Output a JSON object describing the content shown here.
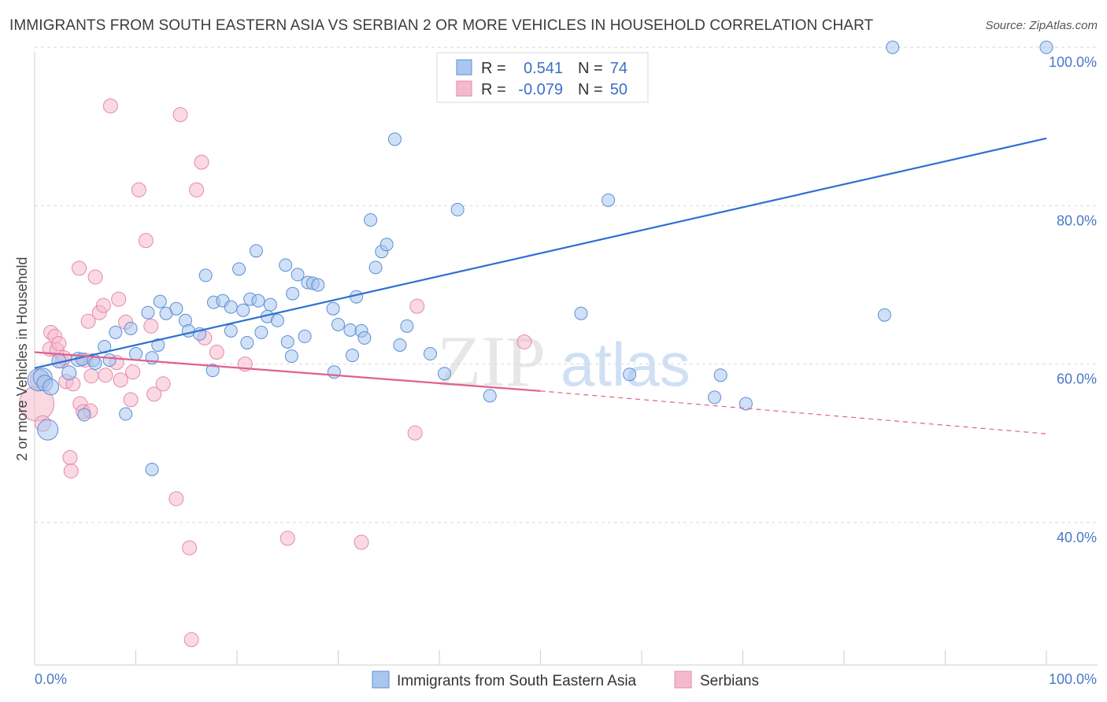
{
  "header": {
    "title": "IMMIGRANTS FROM SOUTH EASTERN ASIA VS SERBIAN 2 OR MORE VEHICLES IN HOUSEHOLD CORRELATION CHART",
    "source": "Source: ZipAtlas.com"
  },
  "watermark": {
    "zip": "ZIP",
    "atlas": "atlas"
  },
  "stats": {
    "r_label": "R =",
    "n_label": "N =",
    "blue_r": "0.541",
    "blue_n": "74",
    "pink_r": "-0.079",
    "pink_n": "50"
  },
  "colors": {
    "blue_fill": "#a9c6ee",
    "blue_stroke": "#5b8fd6",
    "blue_line": "#2f6fd0",
    "pink_fill": "#f5b9cc",
    "pink_stroke": "#e58aa8",
    "pink_line": "#e0608e",
    "grid": "#d9d9d9",
    "tick_text": "#4a78c8"
  },
  "chart_data": {
    "type": "scatter",
    "title": "IMMIGRANTS FROM SOUTH EASTERN ASIA VS SERBIAN 2 OR MORE VEHICLES IN HOUSEHOLD CORRELATION CHART",
    "xlabel": "",
    "ylabel": "2 or more Vehicles in Household",
    "xlim": [
      0,
      100
    ],
    "ylim": [
      22,
      102
    ],
    "x_tick_labels": [
      "0.0%",
      "100.0%"
    ],
    "y_ticks": [
      40,
      60,
      80,
      100
    ],
    "y_tick_labels": [
      "40.0%",
      "60.0%",
      "80.0%",
      "100.0%"
    ],
    "grid": "horizontal dashed",
    "legend_position": "bottom-center",
    "series": [
      {
        "name": "Immigrants from South Eastern Asia",
        "color": "#a9c6ee",
        "r": 0.541,
        "n": 74,
        "trend": {
          "x": [
            0,
            100
          ],
          "y": [
            59.5,
            88.5
          ],
          "style": "solid"
        },
        "points": [
          [
            0.4,
            58.0,
            14
          ],
          [
            0.8,
            58.3,
            12
          ],
          [
            1.0,
            57.6,
            10
          ],
          [
            1.3,
            51.7,
            13
          ],
          [
            1.6,
            57.1,
            10
          ],
          [
            2.4,
            60.4,
            9
          ],
          [
            3.4,
            58.9,
            9
          ],
          [
            4.3,
            60.6,
            9
          ],
          [
            4.7,
            60.6,
            8
          ],
          [
            4.9,
            53.6,
            8
          ],
          [
            5.8,
            60.5,
            8
          ],
          [
            6.0,
            60.1,
            8
          ],
          [
            6.9,
            62.2,
            8
          ],
          [
            7.4,
            60.5,
            8
          ],
          [
            8.0,
            64.0,
            8
          ],
          [
            9.0,
            53.7,
            8
          ],
          [
            9.5,
            64.5,
            8
          ],
          [
            10.0,
            61.3,
            8
          ],
          [
            11.2,
            66.5,
            8
          ],
          [
            11.6,
            60.8,
            8
          ],
          [
            11.6,
            46.7,
            8
          ],
          [
            12.2,
            62.4,
            8
          ],
          [
            12.4,
            67.9,
            8
          ],
          [
            13.0,
            66.4,
            8
          ],
          [
            14.0,
            67.0,
            8
          ],
          [
            14.9,
            65.5,
            8
          ],
          [
            15.2,
            64.2,
            8
          ],
          [
            16.3,
            63.8,
            8
          ],
          [
            16.9,
            71.2,
            8
          ],
          [
            17.6,
            59.2,
            8
          ],
          [
            17.7,
            67.8,
            8
          ],
          [
            18.6,
            68.0,
            8
          ],
          [
            19.4,
            67.2,
            8
          ],
          [
            19.4,
            64.2,
            8
          ],
          [
            20.2,
            72.0,
            8
          ],
          [
            20.6,
            66.8,
            8
          ],
          [
            21.0,
            62.7,
            8
          ],
          [
            21.3,
            68.2,
            8
          ],
          [
            21.9,
            74.3,
            8
          ],
          [
            22.1,
            68.0,
            8
          ],
          [
            22.4,
            64.0,
            8
          ],
          [
            23.0,
            66.0,
            8
          ],
          [
            23.3,
            67.5,
            8
          ],
          [
            24.0,
            65.5,
            8
          ],
          [
            24.8,
            72.5,
            8
          ],
          [
            25.0,
            62.8,
            8
          ],
          [
            25.4,
            61.0,
            8
          ],
          [
            25.5,
            68.9,
            8
          ],
          [
            26.0,
            71.3,
            8
          ],
          [
            26.7,
            63.5,
            8
          ],
          [
            27.0,
            70.3,
            8
          ],
          [
            27.5,
            70.2,
            8
          ],
          [
            28.0,
            70.0,
            8
          ],
          [
            29.5,
            67.0,
            8
          ],
          [
            29.6,
            59.0,
            8
          ],
          [
            30.0,
            65.0,
            8
          ],
          [
            31.2,
            64.3,
            8
          ],
          [
            31.4,
            61.1,
            8
          ],
          [
            31.8,
            68.5,
            8
          ],
          [
            32.3,
            64.2,
            8
          ],
          [
            32.6,
            63.3,
            8
          ],
          [
            33.2,
            78.2,
            8
          ],
          [
            33.7,
            72.2,
            8
          ],
          [
            34.3,
            74.2,
            8
          ],
          [
            34.8,
            75.1,
            8
          ],
          [
            35.6,
            88.4,
            8
          ],
          [
            36.1,
            62.4,
            8
          ],
          [
            36.8,
            64.8,
            8
          ],
          [
            39.1,
            61.3,
            8
          ],
          [
            40.5,
            58.8,
            8
          ],
          [
            41.8,
            79.5,
            8
          ],
          [
            45.0,
            56.0,
            8
          ],
          [
            54.0,
            66.4,
            8
          ],
          [
            56.7,
            80.7,
            8
          ],
          [
            58.8,
            58.7,
            8
          ],
          [
            67.2,
            55.8,
            8
          ],
          [
            67.8,
            58.6,
            8
          ],
          [
            70.3,
            55.0,
            8
          ],
          [
            84.0,
            66.2,
            8
          ],
          [
            84.8,
            100.0,
            8
          ],
          [
            100.0,
            100.0,
            8
          ]
        ]
      },
      {
        "name": "Serbians",
        "color": "#f5b9cc",
        "r": -0.079,
        "n": 50,
        "trend": {
          "x": [
            0,
            50
          ],
          "y": [
            61.5,
            56.6
          ],
          "style": "solid",
          "extension": {
            "x": [
              50,
              100
            ],
            "y": [
              56.6,
              51.2
            ],
            "style": "dashed"
          }
        },
        "points": [
          [
            0.2,
            55.0,
            22
          ],
          [
            0.5,
            58.0,
            12
          ],
          [
            0.8,
            52.5,
            10
          ],
          [
            1.5,
            61.9,
            9
          ],
          [
            1.6,
            64.0,
            9
          ],
          [
            2.0,
            63.5,
            9
          ],
          [
            2.2,
            61.8,
            9
          ],
          [
            2.4,
            62.6,
            9
          ],
          [
            2.7,
            60.4,
            9
          ],
          [
            2.9,
            60.8,
            9
          ],
          [
            3.1,
            57.8,
            9
          ],
          [
            3.5,
            48.2,
            9
          ],
          [
            3.6,
            46.5,
            9
          ],
          [
            3.8,
            57.5,
            9
          ],
          [
            4.4,
            72.1,
            9
          ],
          [
            4.5,
            55.0,
            9
          ],
          [
            4.8,
            54.0,
            9
          ],
          [
            5.0,
            60.5,
            9
          ],
          [
            5.3,
            65.4,
            9
          ],
          [
            5.5,
            54.1,
            9
          ],
          [
            5.6,
            58.5,
            9
          ],
          [
            6.0,
            71.0,
            9
          ],
          [
            6.4,
            66.5,
            9
          ],
          [
            6.8,
            67.4,
            9
          ],
          [
            7.0,
            58.6,
            9
          ],
          [
            7.5,
            92.6,
            9
          ],
          [
            8.1,
            60.2,
            9
          ],
          [
            8.3,
            68.2,
            9
          ],
          [
            8.5,
            58.0,
            9
          ],
          [
            9.0,
            65.3,
            9
          ],
          [
            9.5,
            55.5,
            9
          ],
          [
            9.7,
            59.0,
            9
          ],
          [
            10.3,
            82.0,
            9
          ],
          [
            11.0,
            75.6,
            9
          ],
          [
            11.5,
            64.8,
            9
          ],
          [
            11.8,
            56.2,
            9
          ],
          [
            12.7,
            57.5,
            9
          ],
          [
            14.0,
            43.0,
            9
          ],
          [
            14.4,
            91.5,
            9
          ],
          [
            15.3,
            36.8,
            9
          ],
          [
            15.5,
            25.2,
            9
          ],
          [
            16.0,
            82.0,
            9
          ],
          [
            16.5,
            85.5,
            9
          ],
          [
            16.8,
            63.3,
            9
          ],
          [
            18.0,
            61.5,
            9
          ],
          [
            20.8,
            60.0,
            9
          ],
          [
            25.0,
            38.0,
            9
          ],
          [
            32.3,
            37.5,
            9
          ],
          [
            37.6,
            51.3,
            9
          ],
          [
            37.8,
            67.3,
            9
          ],
          [
            48.4,
            62.8,
            9
          ]
        ]
      }
    ]
  },
  "legend": {
    "items": [
      {
        "label": "Immigrants from South Eastern Asia"
      },
      {
        "label": "Serbians"
      }
    ]
  }
}
